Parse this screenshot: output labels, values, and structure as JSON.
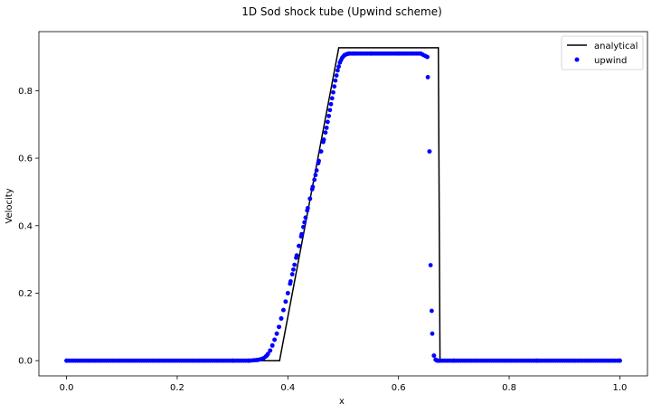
{
  "chart_data": {
    "type": "line",
    "title": "1D Sod shock tube (Upwind scheme)",
    "xlabel": "x",
    "ylabel": "Velocity",
    "xlim": [
      -0.05,
      1.05
    ],
    "ylim": [
      -0.045,
      0.975
    ],
    "xticks": [
      0.0,
      0.2,
      0.4,
      0.6,
      0.8,
      1.0
    ],
    "xtick_labels": [
      "0.0",
      "0.2",
      "0.4",
      "0.6",
      "0.8",
      "1.0"
    ],
    "yticks": [
      0.0,
      0.2,
      0.4,
      0.6,
      0.8
    ],
    "ytick_labels": [
      "0.0",
      "0.2",
      "0.4",
      "0.6",
      "0.8"
    ],
    "grid": false,
    "legend": {
      "position": "top-right",
      "entries": [
        "analytical",
        "upwind"
      ]
    },
    "series": [
      {
        "name": "analytical",
        "kind": "line",
        "color": "#000000",
        "x": [
          0.0,
          0.385,
          0.492,
          0.672,
          0.675,
          1.0
        ],
        "y": [
          0.0,
          0.0,
          0.927,
          0.927,
          0.0,
          0.0
        ]
      },
      {
        "name": "upwind",
        "kind": "scatter",
        "color": "#0000ff",
        "x": [
          0.0,
          0.3,
          0.33,
          0.345,
          0.355,
          0.362,
          0.368,
          0.372,
          0.376,
          0.38,
          0.384,
          0.388,
          0.392,
          0.396,
          0.4,
          0.405,
          0.41,
          0.415,
          0.42,
          0.425,
          0.43,
          0.435,
          0.44,
          0.445,
          0.45,
          0.455,
          0.46,
          0.465,
          0.47,
          0.474,
          0.478,
          0.482,
          0.486,
          0.49,
          0.494,
          0.498,
          0.502,
          0.506,
          0.51,
          0.52,
          0.55,
          0.6,
          0.64,
          0.652,
          0.653,
          0.656,
          0.658,
          0.661,
          0.664,
          0.667,
          0.67,
          0.675,
          0.7,
          0.85,
          1.0
        ],
        "y": [
          0.0,
          0.0,
          0.0,
          0.002,
          0.006,
          0.015,
          0.03,
          0.045,
          0.062,
          0.08,
          0.1,
          0.125,
          0.15,
          0.175,
          0.2,
          0.235,
          0.27,
          0.305,
          0.34,
          0.375,
          0.41,
          0.445,
          0.48,
          0.515,
          0.55,
          0.585,
          0.62,
          0.655,
          0.69,
          0.725,
          0.76,
          0.795,
          0.83,
          0.86,
          0.883,
          0.897,
          0.905,
          0.908,
          0.91,
          0.91,
          0.91,
          0.91,
          0.91,
          0.9,
          0.84,
          0.62,
          0.283,
          0.08,
          0.015,
          0.003,
          0.0,
          0.0,
          0.0,
          0.0,
          0.0
        ]
      }
    ]
  }
}
